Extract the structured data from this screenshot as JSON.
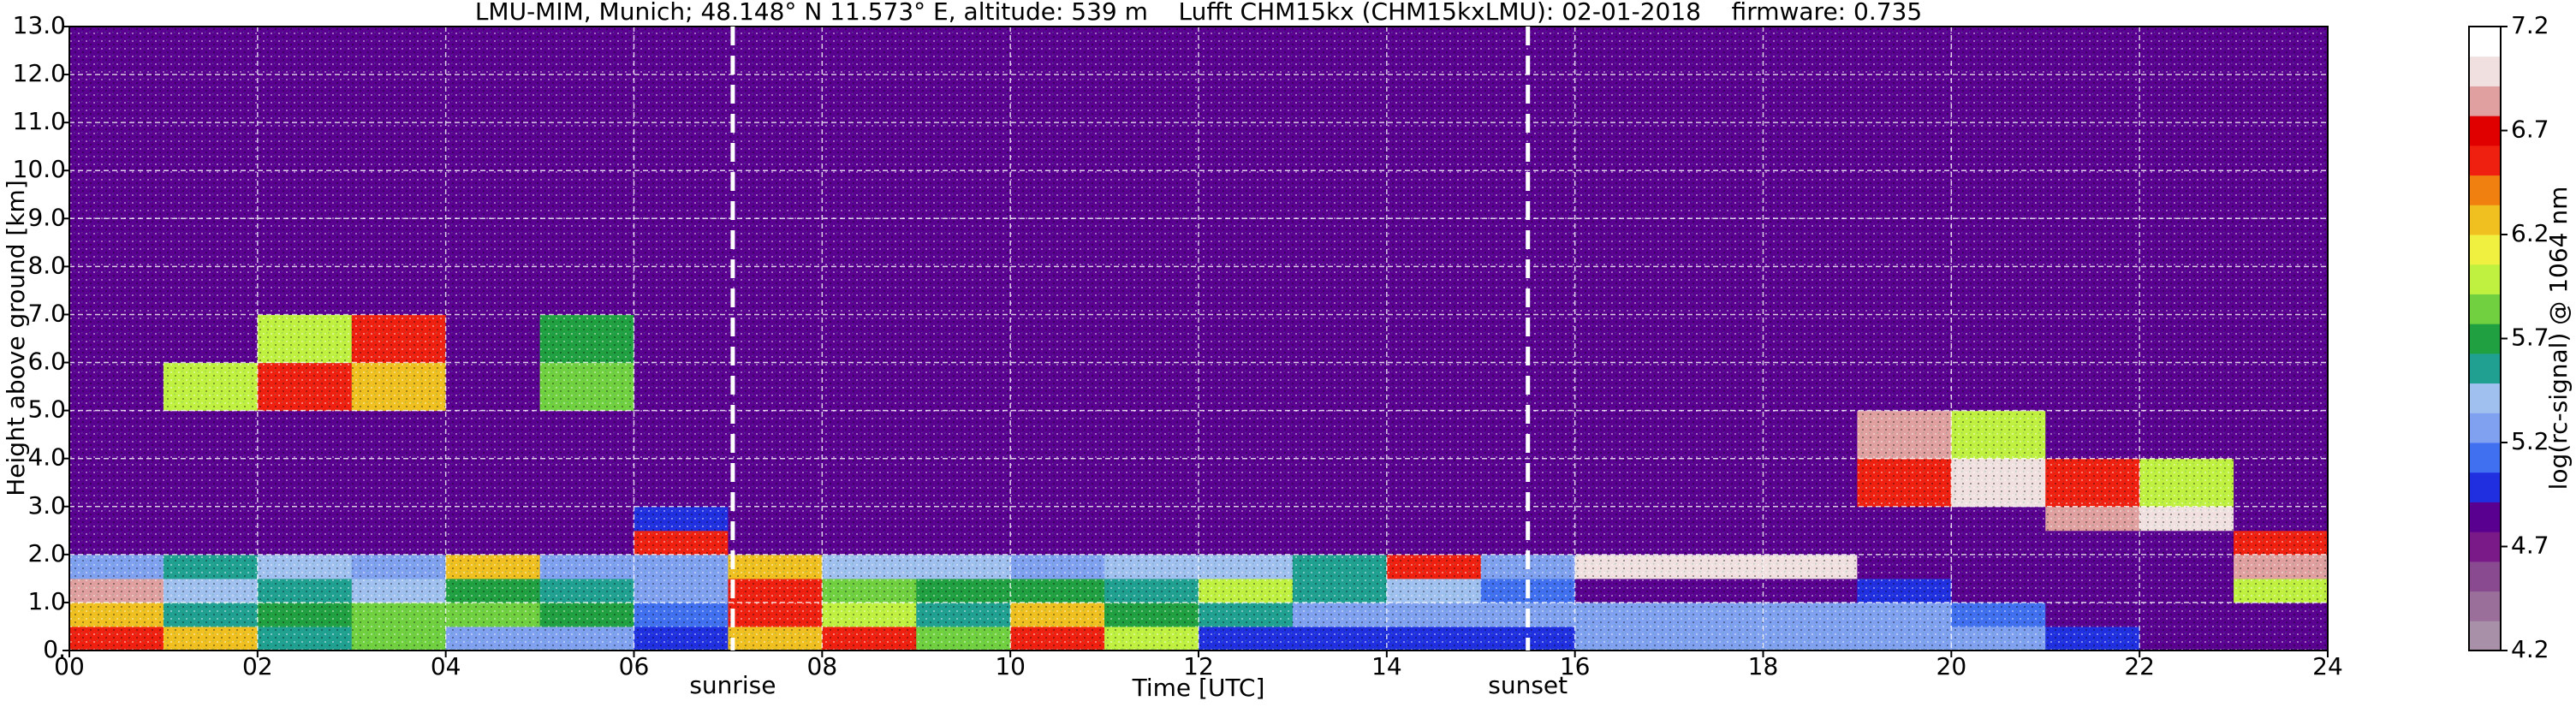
{
  "chart_data": {
    "type": "heatmap",
    "title": "LMU-MIM, Munich; 48.148° N 11.573° E, altitude: 539 m    Lufft CHM15kx (CHM15kxLMU): 02-01-2018    firmware: 0.735",
    "x_label": "Time [UTC]",
    "y_label": "Height above ground [km]",
    "colorbar_label": "log(rc-signal) @ 1064 nm",
    "xlim": [
      0,
      24
    ],
    "xticks": [
      {
        "value": 0,
        "label": "00"
      },
      {
        "value": 2,
        "label": "02"
      },
      {
        "value": 4,
        "label": "04"
      },
      {
        "value": 6,
        "label": "06"
      },
      {
        "value": 8,
        "label": "08"
      },
      10,
      12,
      14,
      16,
      18,
      20,
      22,
      24
    ],
    "ylim": [
      0,
      13
    ],
    "yticks": [
      {
        "value": 0,
        "label": "0."
      },
      {
        "value": 1,
        "label": "1.0"
      },
      {
        "value": 2,
        "label": "2.0"
      },
      {
        "value": 3,
        "label": "3.0"
      },
      {
        "value": 4,
        "label": "4.0"
      },
      {
        "value": 5,
        "label": "5.0"
      },
      {
        "value": 6,
        "label": "6.0"
      },
      {
        "value": 7,
        "label": "7.0"
      },
      {
        "value": 8,
        "label": "8.0"
      },
      {
        "value": 9,
        "label": "9.0"
      },
      {
        "value": 10,
        "label": "10.0"
      },
      {
        "value": 11,
        "label": "11.0"
      },
      {
        "value": 12,
        "label": "12.0"
      },
      {
        "value": 13,
        "label": "13.0"
      }
    ],
    "grid": true,
    "clim": [
      4.2,
      7.2
    ],
    "cticks": [
      4.2,
      4.7,
      5.2,
      5.7,
      6.2,
      6.7,
      7.2
    ],
    "colors": [
      "#a890a8",
      "#9a6f9a",
      "#8a4a90",
      "#7a1a88",
      "#5a0090",
      "#2030e0",
      "#4070f0",
      "#80a0f0",
      "#a0c0f0",
      "#20a090",
      "#20a040",
      "#70d040",
      "#c0f040",
      "#f0f040",
      "#f0c020",
      "#f08010",
      "#f02010",
      "#e00000",
      "#e0a0a0",
      "#f0e0e0",
      "#ffffff"
    ],
    "markers": [
      {
        "label": "sunrise",
        "x": 7.05
      },
      {
        "label": "sunset",
        "x": 15.5
      }
    ],
    "x_edges": [
      0,
      1,
      2,
      3,
      4,
      5,
      6,
      7,
      8,
      9,
      10,
      11,
      12,
      13,
      14,
      15,
      16,
      17,
      18,
      19,
      20,
      21,
      22,
      23,
      24
    ],
    "y_edges": [
      0,
      0.5,
      1,
      1.5,
      2,
      2.5,
      3,
      4,
      5,
      6,
      7,
      13
    ],
    "z": [
      [
        6.5,
        6.3,
        5.5,
        5.8,
        5.3,
        5.2,
        5.0,
        6.3,
        6.6,
        5.9,
        6.6,
        6.0,
        5.0,
        5.0,
        5.0,
        5.0,
        5.3,
        5.3,
        5.3,
        5.2,
        5.3,
        5.0,
        4.9,
        4.8
      ],
      [
        6.3,
        5.6,
        5.7,
        5.9,
        5.8,
        5.7,
        5.1,
        6.5,
        6.0,
        5.6,
        6.3,
        5.7,
        5.6,
        5.3,
        5.2,
        5.2,
        5.2,
        5.3,
        5.3,
        5.3,
        5.1,
        4.9,
        4.9,
        4.8
      ],
      [
        6.9,
        5.4,
        5.5,
        5.4,
        5.7,
        5.5,
        5.3,
        6.6,
        5.8,
        5.7,
        5.7,
        5.6,
        6.0,
        5.6,
        5.4,
        5.1,
        4.9,
        4.9,
        4.9,
        5.0,
        4.9,
        4.9,
        4.9,
        6.0
      ],
      [
        5.3,
        5.5,
        5.4,
        5.3,
        6.2,
        5.3,
        5.3,
        6.2,
        5.4,
        5.4,
        5.3,
        5.4,
        5.4,
        5.5,
        6.5,
        5.3,
        7.0,
        7.0,
        7.0,
        4.8,
        4.8,
        4.8,
        4.8,
        6.8
      ],
      [
        4.8,
        4.8,
        4.8,
        4.8,
        4.8,
        4.8,
        6.5,
        4.8,
        4.8,
        4.8,
        4.8,
        4.8,
        4.8,
        4.8,
        4.8,
        4.8,
        4.8,
        4.8,
        4.8,
        4.8,
        4.8,
        4.8,
        4.8,
        6.5
      ],
      [
        4.8,
        4.8,
        4.8,
        4.8,
        4.8,
        4.8,
        5.0,
        4.8,
        4.8,
        4.8,
        4.8,
        4.8,
        4.8,
        4.8,
        4.8,
        4.8,
        4.8,
        4.8,
        4.8,
        4.8,
        4.8,
        6.8,
        7.0,
        4.8
      ],
      [
        4.8,
        4.8,
        4.8,
        4.8,
        4.8,
        4.8,
        4.8,
        4.8,
        4.8,
        4.8,
        4.8,
        4.8,
        4.8,
        4.8,
        4.8,
        4.8,
        4.8,
        4.8,
        4.8,
        6.5,
        7.0,
        6.6,
        6.0,
        4.8
      ],
      [
        4.8,
        4.8,
        4.8,
        4.8,
        4.8,
        4.8,
        4.8,
        4.8,
        4.8,
        4.8,
        4.8,
        4.8,
        4.8,
        4.8,
        4.8,
        4.8,
        4.8,
        4.8,
        4.8,
        6.8,
        6.0,
        4.8,
        4.8,
        4.8
      ],
      [
        4.8,
        6.0,
        6.5,
        6.3,
        4.8,
        5.8,
        4.8,
        4.8,
        4.8,
        4.8,
        4.8,
        4.8,
        4.8,
        4.8,
        4.8,
        4.8,
        4.8,
        4.8,
        4.8,
        4.8,
        4.8,
        4.8,
        4.8,
        4.8
      ],
      [
        4.8,
        4.8,
        6.0,
        6.5,
        4.8,
        5.7,
        4.8,
        4.8,
        4.8,
        4.8,
        4.8,
        4.8,
        4.8,
        4.8,
        4.8,
        4.8,
        4.8,
        4.8,
        4.8,
        4.8,
        4.8,
        4.8,
        4.8,
        4.8
      ],
      [
        4.8,
        4.8,
        4.8,
        4.8,
        4.8,
        4.8,
        4.8,
        4.8,
        4.8,
        4.8,
        4.8,
        4.8,
        4.8,
        4.8,
        4.8,
        4.8,
        4.8,
        4.8,
        4.8,
        4.8,
        4.8,
        4.8,
        4.8,
        4.8
      ]
    ]
  }
}
